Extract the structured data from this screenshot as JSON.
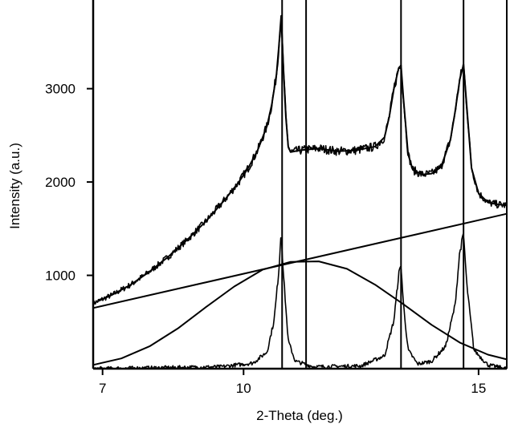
{
  "chart_data": {
    "type": "line",
    "title": "",
    "xlabel": "2-Theta (deg.)",
    "ylabel": "Intensity (a.u.)",
    "xlim": [
      6.8,
      15.6
    ],
    "ylim": [
      0,
      3950
    ],
    "grid": false,
    "x_ticks": [
      {
        "value": 7,
        "label": "7"
      },
      {
        "value": 10,
        "label": "10"
      },
      {
        "value": 15,
        "label": "15"
      }
    ],
    "y_ticks": [
      {
        "value": 1000,
        "label": "1000"
      },
      {
        "value": 2000,
        "label": "2000"
      },
      {
        "value": 3000,
        "label": "3000"
      }
    ],
    "reference_lines_x": [
      10.82,
      11.33,
      13.35,
      14.68
    ],
    "series": [
      {
        "role": "observed-pattern",
        "noisy": true,
        "x": [
          6.8,
          7.2,
          7.6,
          8.0,
          8.4,
          8.8,
          9.2,
          9.6,
          9.9,
          10.1,
          10.3,
          10.5,
          10.6,
          10.7,
          10.75,
          10.8,
          10.85,
          10.9,
          10.95,
          11.0,
          11.2,
          11.6,
          12.0,
          12.4,
          12.8,
          13.0,
          13.1,
          13.2,
          13.3,
          13.35,
          13.4,
          13.5,
          13.6,
          13.8,
          14.0,
          14.2,
          14.4,
          14.5,
          14.6,
          14.68,
          14.75,
          14.85,
          15.0,
          15.2,
          15.4,
          15.6
        ],
        "y": [
          700,
          790,
          900,
          1040,
          1200,
          1380,
          1580,
          1810,
          2000,
          2150,
          2340,
          2600,
          2830,
          3150,
          3450,
          3780,
          3200,
          2700,
          2380,
          2320,
          2340,
          2360,
          2330,
          2340,
          2380,
          2480,
          2700,
          3000,
          3220,
          3250,
          2900,
          2300,
          2130,
          2080,
          2090,
          2160,
          2450,
          2750,
          3100,
          3260,
          2800,
          2150,
          1880,
          1780,
          1760,
          1750
        ]
      },
      {
        "role": "fitted-profile",
        "noisy": false,
        "x": [
          6.8,
          7.2,
          7.6,
          8.0,
          8.4,
          8.8,
          9.2,
          9.6,
          9.9,
          10.1,
          10.3,
          10.5,
          10.6,
          10.7,
          10.75,
          10.8,
          10.85,
          10.9,
          10.95,
          11.0,
          11.2,
          11.6,
          12.0,
          12.4,
          12.8,
          13.0,
          13.1,
          13.2,
          13.3,
          13.35,
          13.4,
          13.5,
          13.6,
          13.8,
          14.0,
          14.2,
          14.4,
          14.5,
          14.6,
          14.68,
          14.75,
          14.85,
          15.0,
          15.2,
          15.4,
          15.6
        ],
        "y": [
          700,
          790,
          900,
          1040,
          1200,
          1380,
          1580,
          1810,
          2000,
          2150,
          2340,
          2600,
          2830,
          3150,
          3450,
          3780,
          3200,
          2700,
          2380,
          2320,
          2340,
          2360,
          2330,
          2340,
          2380,
          2480,
          2700,
          3000,
          3220,
          3250,
          2900,
          2300,
          2130,
          2080,
          2090,
          2160,
          2450,
          2750,
          3100,
          3260,
          2800,
          2150,
          1880,
          1780,
          1760,
          1750
        ]
      },
      {
        "role": "linear-background",
        "noisy": false,
        "x": [
          6.8,
          15.6
        ],
        "y": [
          650,
          1660
        ]
      },
      {
        "role": "broad-amorphous-component",
        "noisy": false,
        "x": [
          6.8,
          7.4,
          8.0,
          8.6,
          9.2,
          9.8,
          10.4,
          11.0,
          11.6,
          12.2,
          12.8,
          13.4,
          14.0,
          14.6,
          15.2,
          15.6
        ],
        "y": [
          40,
          110,
          240,
          430,
          660,
          880,
          1060,
          1145,
          1150,
          1070,
          900,
          690,
          470,
          280,
          150,
          100
        ]
      },
      {
        "role": "sharp-peak-components",
        "noisy": true,
        "x": [
          6.8,
          9.5,
          10.2,
          10.5,
          10.65,
          10.75,
          10.8,
          10.85,
          10.95,
          11.1,
          11.5,
          12.5,
          13.0,
          13.2,
          13.3,
          13.35,
          13.4,
          13.5,
          13.7,
          14.0,
          14.3,
          14.5,
          14.6,
          14.68,
          14.75,
          14.9,
          15.2,
          15.6
        ],
        "y": [
          0,
          20,
          60,
          180,
          520,
          1050,
          1490,
          1000,
          300,
          80,
          20,
          30,
          140,
          520,
          1010,
          1110,
          700,
          200,
          50,
          80,
          240,
          680,
          1250,
          1440,
          900,
          200,
          40,
          0
        ]
      }
    ]
  }
}
